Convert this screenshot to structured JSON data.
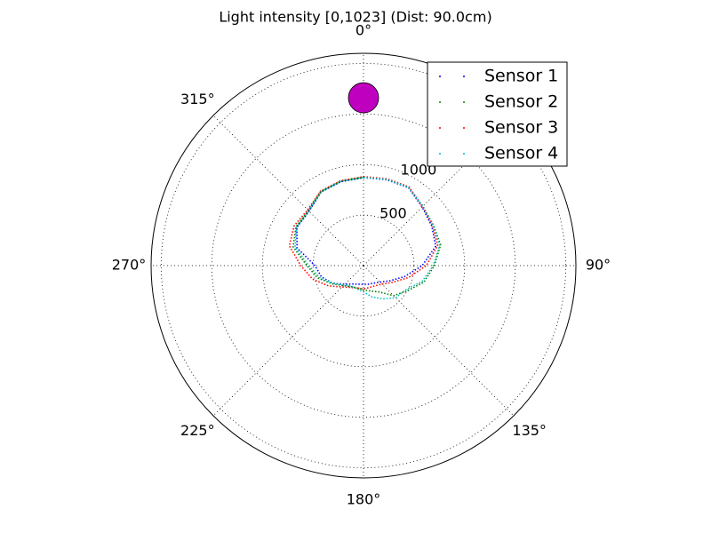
{
  "chart_data": {
    "type": "polar",
    "title": "Light intensity [0,1023] (Dist: 90.0cm)",
    "theta_zero": "top",
    "theta_direction": "clockwise",
    "rlim": [
      0,
      2100
    ],
    "rticks": [
      500,
      1000,
      1500,
      2000
    ],
    "thetaticks": [
      {
        "value": 0,
        "label": "0°"
      },
      {
        "value": 45,
        "label": "45°"
      },
      {
        "value": 90,
        "label": "90°"
      },
      {
        "value": 135,
        "label": "135°"
      },
      {
        "value": 180,
        "label": "180°"
      },
      {
        "value": 225,
        "label": "225°"
      },
      {
        "value": 270,
        "label": "270°"
      },
      {
        "value": 315,
        "label": "315°"
      }
    ],
    "grid": true,
    "legend": "upper right",
    "x": [
      0,
      15,
      30,
      45,
      60,
      75,
      90,
      105,
      120,
      135,
      150,
      165,
      180,
      195,
      210,
      225,
      240,
      255,
      270,
      285,
      300,
      315,
      330,
      345
    ],
    "series": [
      {
        "name": "Sensor 1",
        "color": "#0000ff",
        "values": [
          870,
          880,
          890,
          820,
          780,
          740,
          580,
          420,
          300,
          230,
          200,
          190,
          185,
          190,
          210,
          260,
          350,
          430,
          480,
          680,
          760,
          760,
          840,
          860
        ]
      },
      {
        "name": "Sensor 2",
        "color": "#008000",
        "values": [
          875,
          885,
          895,
          830,
          800,
          790,
          700,
          620,
          500,
          420,
          300,
          260,
          240,
          230,
          240,
          280,
          360,
          470,
          560,
          720,
          770,
          770,
          845,
          865
        ]
      },
      {
        "name": "Sensor 3",
        "color": "#ff0000",
        "values": [
          880,
          890,
          900,
          825,
          790,
          760,
          620,
          460,
          330,
          260,
          230,
          225,
          230,
          230,
          250,
          300,
          400,
          520,
          620,
          760,
          790,
          780,
          850,
          870
        ]
      },
      {
        "name": "Sensor 4",
        "color": "#00bfbf",
        "values": [
          872,
          884,
          893,
          828,
          798,
          780,
          690,
          600,
          480,
          450,
          380,
          320,
          260,
          240,
          235,
          270,
          350,
          450,
          540,
          700,
          765,
          765,
          842,
          862
        ]
      }
    ],
    "marker": {
      "theta": 0,
      "r": 1660,
      "color": "#bf00bf"
    }
  }
}
